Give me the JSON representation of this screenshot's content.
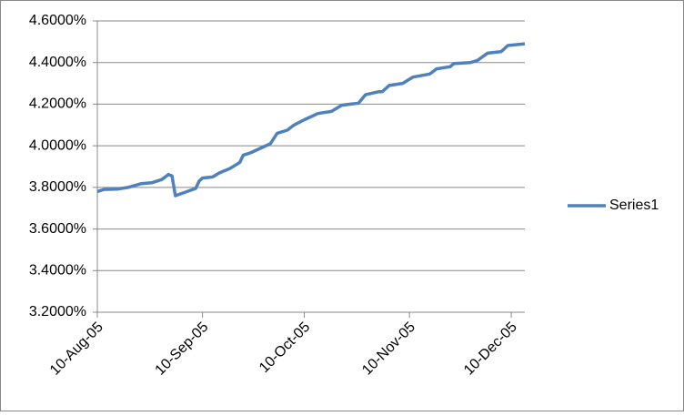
{
  "chart_data": {
    "type": "line",
    "x": [
      "2005-08-10",
      "2005-08-12",
      "2005-08-16",
      "2005-08-19",
      "2005-08-23",
      "2005-08-26",
      "2005-08-29",
      "2005-08-31",
      "2005-09-01",
      "2005-09-02",
      "2005-09-08",
      "2005-09-09",
      "2005-09-10",
      "2005-09-13",
      "2005-09-15",
      "2005-09-18",
      "2005-09-21",
      "2005-09-22",
      "2005-09-24",
      "2005-09-30",
      "2005-10-02",
      "2005-10-05",
      "2005-10-07",
      "2005-10-10",
      "2005-10-14",
      "2005-10-18",
      "2005-10-21",
      "2005-10-26",
      "2005-10-28",
      "2005-11-01",
      "2005-11-02",
      "2005-11-04",
      "2005-11-08",
      "2005-11-11",
      "2005-11-16",
      "2005-11-18",
      "2005-11-22",
      "2005-11-23",
      "2005-11-28",
      "2005-11-30",
      "2005-12-03",
      "2005-12-07",
      "2005-12-09",
      "2005-12-14"
    ],
    "series": [
      {
        "name": "Series1",
        "color": "#4f81bd",
        "values": [
          3.78,
          3.79,
          3.792,
          3.8,
          3.818,
          3.822,
          3.838,
          3.862,
          3.855,
          3.76,
          3.795,
          3.83,
          3.845,
          3.85,
          3.87,
          3.89,
          3.92,
          3.955,
          3.965,
          4.01,
          4.06,
          4.075,
          4.1,
          4.125,
          4.155,
          4.165,
          4.195,
          4.205,
          4.245,
          4.26,
          4.26,
          4.29,
          4.3,
          4.33,
          4.345,
          4.37,
          4.38,
          4.395,
          4.4,
          4.41,
          4.445,
          4.452,
          4.482,
          4.49
        ]
      }
    ],
    "xlim": [
      "2005-08-10",
      "2005-12-14"
    ],
    "xticks": [
      {
        "value": "2005-08-10",
        "label": "10-Aug-05"
      },
      {
        "value": "2005-09-10",
        "label": "10-Sep-05"
      },
      {
        "value": "2005-10-10",
        "label": "10-Oct-05"
      },
      {
        "value": "2005-11-10",
        "label": "10-Nov-05"
      },
      {
        "value": "2005-12-10",
        "label": "10-Dec-05"
      }
    ],
    "ylim": [
      3.2,
      4.6
    ],
    "yticks": [
      {
        "value": 3.2,
        "label": "3.2000%"
      },
      {
        "value": 3.4,
        "label": "3.4000%"
      },
      {
        "value": 3.6,
        "label": "3.6000%"
      },
      {
        "value": 3.8,
        "label": "3.8000%"
      },
      {
        "value": 4.0,
        "label": "4.0000%"
      },
      {
        "value": 4.2,
        "label": "4.2000%"
      },
      {
        "value": 4.4,
        "label": "4.4000%"
      },
      {
        "value": 4.6,
        "label": "4.6000%"
      }
    ],
    "grid": true,
    "legend": "right"
  }
}
